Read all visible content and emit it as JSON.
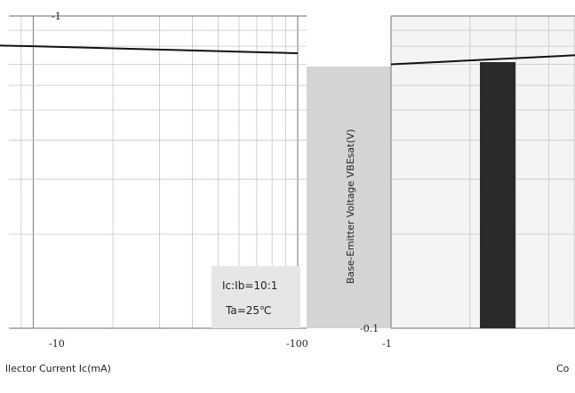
{
  "chart_data": [
    {
      "type": "line",
      "title": "",
      "xlabel": "llector Current  Ic(mA)",
      "ylabel": "",
      "xscale": "log",
      "yscale": "log",
      "x_ticks": [
        "-10",
        "-100"
      ],
      "y_ticks": [
        "-1"
      ],
      "series": [
        {
          "x": [
            -1,
            -10,
            -100
          ],
          "y": [
            -0.83,
            -0.8,
            -0.76
          ]
        }
      ],
      "annotations": [
        "Ic:Ib=10:1",
        "Ta=25℃"
      ],
      "grid": true
    },
    {
      "type": "line",
      "title": "",
      "xlabel": "Co",
      "ylabel": "Base-Emitter Voltage   VBEsat(V)",
      "xscale": "log",
      "yscale": "log",
      "x_ticks": [
        "-1"
      ],
      "y_ticks": [
        "-1",
        "-0.1"
      ],
      "series": [
        {
          "x": [
            -1,
            -10,
            -100
          ],
          "y": [
            -0.7,
            -0.77,
            -0.86
          ]
        }
      ],
      "grid": true
    }
  ]
}
